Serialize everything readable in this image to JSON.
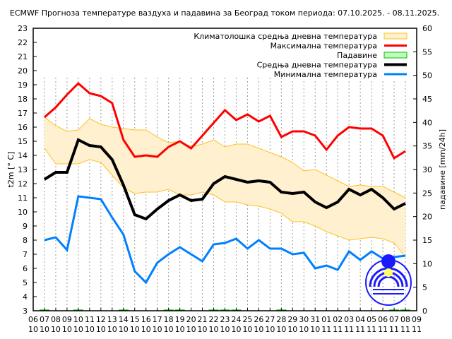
{
  "chart_data": {
    "type": "line",
    "title": "ECMWF Прогноза температуре ваздуха и падавина за Београд током периода: 07.10.2025. - 08.11.2025.",
    "ylabel": "t2m [° C]",
    "y2label": "падавине [mm/24h]",
    "ylim": [
      3,
      23
    ],
    "y2lim": [
      0,
      60
    ],
    "grid": "vertical dashed",
    "legend_position": "top-right",
    "xticks_day": [
      "06",
      "07",
      "08",
      "09",
      "10",
      "11",
      "12",
      "13",
      "14",
      "15",
      "16",
      "17",
      "18",
      "19",
      "20",
      "21",
      "22",
      "23",
      "24",
      "25",
      "26",
      "27",
      "28",
      "29",
      "30",
      "31",
      "01",
      "02",
      "03",
      "04",
      "05",
      "06",
      "07",
      "08",
      "09"
    ],
    "xticks_month": [
      "10",
      "10",
      "10",
      "10",
      "10",
      "10",
      "10",
      "10",
      "10",
      "10",
      "10",
      "10",
      "10",
      "10",
      "10",
      "10",
      "10",
      "10",
      "10",
      "10",
      "10",
      "10",
      "10",
      "10",
      "10",
      "10",
      "11",
      "11",
      "11",
      "11",
      "11",
      "11",
      "11",
      "11",
      "11"
    ],
    "yticks": [
      3,
      4,
      5,
      6,
      7,
      8,
      9,
      10,
      11,
      12,
      13,
      14,
      15,
      16,
      17,
      18,
      19,
      20,
      21,
      22,
      23
    ],
    "y2ticks": [
      0,
      5,
      10,
      15,
      20,
      25,
      30,
      35,
      40,
      45,
      50,
      55,
      60
    ],
    "climate": {
      "name": "Климатолошка средња дневна температура",
      "color": "#fff0d0",
      "edge": "#ffc020",
      "upper": [
        16.7,
        16.1,
        15.7,
        15.8,
        16.6,
        16.2,
        16.0,
        15.9,
        15.8,
        15.8,
        15.3,
        14.9,
        15.0,
        14.6,
        14.8,
        15.1,
        14.6,
        14.8,
        14.8,
        14.5,
        14.2,
        13.9,
        13.5,
        12.9,
        13.0,
        12.6,
        12.2,
        11.8,
        11.9,
        11.8,
        11.8,
        11.4,
        11.0
      ],
      "lower": [
        14.5,
        13.4,
        13.4,
        13.4,
        13.7,
        13.5,
        12.6,
        11.7,
        11.3,
        11.4,
        11.4,
        11.6,
        11.2,
        11.2,
        11.4,
        11.2,
        10.7,
        10.7,
        10.5,
        10.4,
        10.2,
        9.9,
        9.3,
        9.3,
        9.0,
        8.6,
        8.3,
        8.0,
        8.1,
        8.2,
        8.1,
        7.8,
        6.8
      ]
    },
    "series": [
      {
        "name": "Максимална температура",
        "color": "#ff0000",
        "width": 3,
        "values": [
          16.7,
          17.4,
          18.3,
          19.1,
          18.4,
          18.2,
          17.7,
          15.1,
          13.9,
          14.0,
          13.9,
          14.6,
          15.0,
          14.5,
          15.4,
          16.3,
          17.2,
          16.5,
          16.9,
          16.4,
          16.8,
          15.3,
          15.7,
          15.7,
          15.4,
          14.4,
          15.4,
          16.0,
          15.9,
          15.9,
          15.4,
          13.8,
          14.3
        ]
      },
      {
        "name": "Средња дневна температура",
        "color": "#000000",
        "width": 4,
        "values": [
          12.3,
          12.8,
          12.8,
          15.1,
          14.7,
          14.6,
          13.7,
          11.9,
          9.8,
          9.5,
          10.2,
          10.8,
          11.2,
          10.8,
          10.9,
          12.0,
          12.5,
          12.3,
          12.1,
          12.2,
          12.1,
          11.4,
          11.3,
          11.4,
          10.7,
          10.3,
          10.7,
          11.6,
          11.2,
          11.6,
          11.0,
          10.2,
          10.6
        ]
      },
      {
        "name": "Минимална температура",
        "color": "#0080ff",
        "width": 3,
        "values": [
          8.0,
          8.2,
          7.3,
          11.1,
          11.0,
          10.9,
          9.6,
          8.4,
          5.8,
          5.0,
          6.4,
          7.0,
          7.5,
          7.0,
          6.5,
          7.7,
          7.8,
          8.1,
          7.4,
          8.0,
          7.4,
          7.4,
          7.0,
          7.1,
          6.0,
          6.2,
          5.9,
          7.2,
          6.6,
          7.2,
          6.7,
          6.8,
          6.9
        ]
      }
    ],
    "precipitation": {
      "name": "Падавине",
      "color": "#00c000",
      "fill": "#c0ffc0",
      "values": [
        0.1,
        0,
        0,
        0.1,
        0,
        0,
        0,
        0.1,
        0,
        0,
        0,
        0.1,
        0.1,
        0,
        0,
        0.1,
        0.1,
        0.1,
        0,
        0,
        0,
        0.1,
        0,
        0,
        0,
        0,
        0,
        0,
        0,
        0,
        0,
        0.1,
        0.1
      ]
    }
  }
}
